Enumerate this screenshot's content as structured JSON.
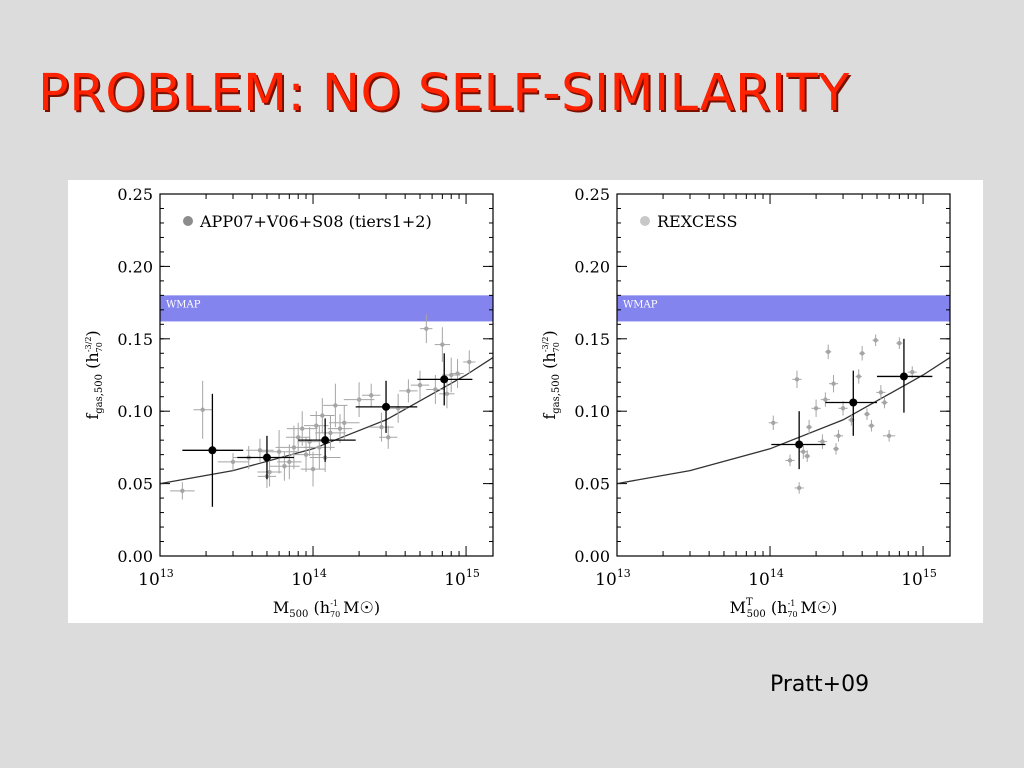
{
  "slide": {
    "title": "PROBLEM: NO SELF-SIMILARITY",
    "credit": "Pratt+09"
  },
  "chart_data": [
    {
      "type": "scatter",
      "title": "",
      "xscale": "log",
      "xlim": [
        10000000000000.0,
        1500000000000000.0
      ],
      "ylim": [
        0.0,
        0.25
      ],
      "x_ticks": [
        {
          "v": 10000000000000.0,
          "base": "10",
          "exp": "13"
        },
        {
          "v": 100000000000000.0,
          "base": "10",
          "exp": "14"
        },
        {
          "v": 1000000000000000.0,
          "base": "10",
          "exp": "15"
        }
      ],
      "y_ticks": [
        "0.00",
        "0.05",
        "0.10",
        "0.15",
        "0.20",
        "0.25"
      ],
      "xlabel": {
        "main": "M",
        "sub": "500",
        "sup": "",
        "unit": "(h",
        "unit_sub": "70",
        "unit_sup": "-1",
        "unit_tail": " M☉)"
      },
      "ylabel": {
        "main": "f",
        "sub": "gas,500",
        "unit": "(h",
        "unit_sub": "70",
        "unit_sup": "-3/2",
        "unit_tail": ")"
      },
      "legend": {
        "label": "APP07+V06+S08 (tiers1+2)",
        "color": "#8c8c8c",
        "position": "top-left"
      },
      "band": {
        "label": "WMAP",
        "y0": 0.162,
        "y1": 0.18,
        "color": "#8484ee"
      },
      "fit_curve": {
        "x": [
          10000000000000.0,
          30000000000000.0,
          100000000000000.0,
          300000000000000.0,
          1000000000000000.0,
          1500000000000000.0
        ],
        "y": [
          0.05,
          0.059,
          0.074,
          0.094,
          0.125,
          0.137
        ]
      },
      "series": [
        {
          "role": "individual",
          "color": "#a5a5a5",
          "points": [
            {
              "x": 14000000000000.0,
              "y": 0.045,
              "xe": 0.08,
              "ye": 0.006
            },
            {
              "x": 19000000000000.0,
              "y": 0.101,
              "xe": 0.06,
              "ye": 0.02
            },
            {
              "x": 30000000000000.0,
              "y": 0.065,
              "xe": 0.1,
              "ye": 0.006
            },
            {
              "x": 38000000000000.0,
              "y": 0.068,
              "xe": 0.1,
              "ye": 0.008
            },
            {
              "x": 45000000000000.0,
              "y": 0.073,
              "xe": 0.09,
              "ye": 0.008
            },
            {
              "x": 52000000000000.0,
              "y": 0.058,
              "xe": 0.08,
              "ye": 0.01
            },
            {
              "x": 50000000000000.0,
              "y": 0.055,
              "xe": 0.06,
              "ye": 0.008
            },
            {
              "x": 60000000000000.0,
              "y": 0.072,
              "xe": 0.12,
              "ye": 0.015
            },
            {
              "x": 65000000000000.0,
              "y": 0.062,
              "xe": 0.1,
              "ye": 0.01
            },
            {
              "x": 70000000000000.0,
              "y": 0.065,
              "xe": 0.08,
              "ye": 0.012
            },
            {
              "x": 75000000000000.0,
              "y": 0.075,
              "xe": 0.12,
              "ye": 0.015
            },
            {
              "x": 80000000000000.0,
              "y": 0.082,
              "xe": 0.08,
              "ye": 0.01
            },
            {
              "x": 85000000000000.0,
              "y": 0.088,
              "xe": 0.1,
              "ye": 0.012
            },
            {
              "x": 90000000000000.0,
              "y": 0.07,
              "xe": 0.1,
              "ye": 0.012
            },
            {
              "x": 95000000000000.0,
              "y": 0.079,
              "xe": 0.08,
              "ye": 0.01
            },
            {
              "x": 100000000000000.0,
              "y": 0.06,
              "xe": 0.08,
              "ye": 0.012
            },
            {
              "x": 105000000000000.0,
              "y": 0.09,
              "xe": 0.08,
              "ye": 0.01
            },
            {
              "x": 110000000000000.0,
              "y": 0.075,
              "xe": 0.1,
              "ye": 0.015
            },
            {
              "x": 115000000000000.0,
              "y": 0.097,
              "xe": 0.08,
              "ye": 0.012
            },
            {
              "x": 120000000000000.0,
              "y": 0.068,
              "xe": 0.1,
              "ye": 0.01
            },
            {
              "x": 130000000000000.0,
              "y": 0.085,
              "xe": 0.1,
              "ye": 0.012
            },
            {
              "x": 140000000000000.0,
              "y": 0.104,
              "xe": 0.08,
              "ye": 0.015
            },
            {
              "x": 150000000000000.0,
              "y": 0.088,
              "xe": 0.08,
              "ye": 0.01
            },
            {
              "x": 160000000000000.0,
              "y": 0.092,
              "xe": 0.1,
              "ye": 0.012
            },
            {
              "x": 200000000000000.0,
              "y": 0.108,
              "xe": 0.1,
              "ye": 0.012
            },
            {
              "x": 240000000000000.0,
              "y": 0.111,
              "xe": 0.06,
              "ye": 0.008
            },
            {
              "x": 280000000000000.0,
              "y": 0.089,
              "xe": 0.08,
              "ye": 0.01
            },
            {
              "x": 310000000000000.0,
              "y": 0.082,
              "xe": 0.06,
              "ye": 0.008
            },
            {
              "x": 360000000000000.0,
              "y": 0.102,
              "xe": 0.06,
              "ye": 0.01
            },
            {
              "x": 420000000000000.0,
              "y": 0.114,
              "xe": 0.06,
              "ye": 0.008
            },
            {
              "x": 500000000000000.0,
              "y": 0.118,
              "xe": 0.06,
              "ye": 0.01
            },
            {
              "x": 550000000000000.0,
              "y": 0.157,
              "xe": 0.04,
              "ye": 0.01
            },
            {
              "x": 630000000000000.0,
              "y": 0.115,
              "xe": 0.06,
              "ye": 0.01
            },
            {
              "x": 700000000000000.0,
              "y": 0.146,
              "xe": 0.05,
              "ye": 0.012
            },
            {
              "x": 750000000000000.0,
              "y": 0.112,
              "xe": 0.05,
              "ye": 0.01
            },
            {
              "x": 800000000000000.0,
              "y": 0.125,
              "xe": 0.06,
              "ye": 0.012
            },
            {
              "x": 880000000000000.0,
              "y": 0.126,
              "xe": 0.04,
              "ye": 0.01
            },
            {
              "x": 1050000000000000.0,
              "y": 0.134,
              "xe": 0.04,
              "ye": 0.008
            }
          ]
        },
        {
          "role": "binned",
          "color": "#000000",
          "points": [
            {
              "x": 22000000000000.0,
              "y": 0.073,
              "xlo": 14000000000000.0,
              "xhi": 35000000000000.0,
              "ylo": 0.034,
              "yhi": 0.112
            },
            {
              "x": 50000000000000.0,
              "y": 0.068,
              "xlo": 32000000000000.0,
              "xhi": 75000000000000.0,
              "ylo": 0.053,
              "yhi": 0.083
            },
            {
              "x": 120000000000000.0,
              "y": 0.08,
              "xlo": 80000000000000.0,
              "xhi": 190000000000000.0,
              "ylo": 0.065,
              "yhi": 0.095
            },
            {
              "x": 300000000000000.0,
              "y": 0.103,
              "xlo": 190000000000000.0,
              "xhi": 480000000000000.0,
              "ylo": 0.085,
              "yhi": 0.121
            },
            {
              "x": 720000000000000.0,
              "y": 0.122,
              "xlo": 480000000000000.0,
              "xhi": 1100000000000000.0,
              "ylo": 0.104,
              "yhi": 0.14
            }
          ]
        }
      ]
    },
    {
      "type": "scatter",
      "title": "",
      "xscale": "log",
      "xlim": [
        10000000000000.0,
        1500000000000000.0
      ],
      "ylim": [
        0.0,
        0.25
      ],
      "x_ticks": [
        {
          "v": 10000000000000.0,
          "base": "10",
          "exp": "13"
        },
        {
          "v": 100000000000000.0,
          "base": "10",
          "exp": "14"
        },
        {
          "v": 1000000000000000.0,
          "base": "10",
          "exp": "15"
        }
      ],
      "y_ticks": [
        "0.00",
        "0.05",
        "0.10",
        "0.15",
        "0.20",
        "0.25"
      ],
      "xlabel": {
        "main": "M",
        "sub": "500",
        "sup": "T",
        "unit": "(h",
        "unit_sub": "70",
        "unit_sup": "-1",
        "unit_tail": " M☉)"
      },
      "ylabel": {
        "main": "f",
        "sub": "gas,500",
        "unit": "(h",
        "unit_sub": "70",
        "unit_sup": "-3/2",
        "unit_tail": ")"
      },
      "legend": {
        "label": "REXCESS",
        "color": "#c8c8c8",
        "position": "top-left"
      },
      "band": {
        "label": "WMAP",
        "y0": 0.162,
        "y1": 0.18,
        "color": "#8484ee"
      },
      "fit_curve": {
        "x": [
          10000000000000.0,
          30000000000000.0,
          100000000000000.0,
          300000000000000.0,
          1000000000000000.0,
          1500000000000000.0
        ],
        "y": [
          0.05,
          0.059,
          0.074,
          0.094,
          0.125,
          0.137
        ]
      },
      "series": [
        {
          "role": "individual",
          "color": "#a5a5a5",
          "points": [
            {
              "x": 105000000000000.0,
              "y": 0.092,
              "xe": 0.03,
              "ye": 0.005
            },
            {
              "x": 135000000000000.0,
              "y": 0.066,
              "xe": 0.03,
              "ye": 0.004
            },
            {
              "x": 150000000000000.0,
              "y": 0.122,
              "xe": 0.03,
              "ye": 0.006
            },
            {
              "x": 155000000000000.0,
              "y": 0.047,
              "xe": 0.03,
              "ye": 0.004
            },
            {
              "x": 165000000000000.0,
              "y": 0.072,
              "xe": 0.03,
              "ye": 0.005
            },
            {
              "x": 175000000000000.0,
              "y": 0.069,
              "xe": 0.02,
              "ye": 0.004
            },
            {
              "x": 180000000000000.0,
              "y": 0.089,
              "xe": 0.02,
              "ye": 0.005
            },
            {
              "x": 200000000000000.0,
              "y": 0.102,
              "xe": 0.03,
              "ye": 0.006
            },
            {
              "x": 220000000000000.0,
              "y": 0.079,
              "xe": 0.03,
              "ye": 0.005
            },
            {
              "x": 230000000000000.0,
              "y": 0.108,
              "xe": 0.03,
              "ye": 0.005
            },
            {
              "x": 240000000000000.0,
              "y": 0.141,
              "xe": 0.02,
              "ye": 0.005
            },
            {
              "x": 260000000000000.0,
              "y": 0.119,
              "xe": 0.03,
              "ye": 0.006
            },
            {
              "x": 270000000000000.0,
              "y": 0.074,
              "xe": 0.02,
              "ye": 0.004
            },
            {
              "x": 280000000000000.0,
              "y": 0.083,
              "xe": 0.03,
              "ye": 0.004
            },
            {
              "x": 300000000000000.0,
              "y": 0.102,
              "xe": 0.03,
              "ye": 0.005
            },
            {
              "x": 340000000000000.0,
              "y": 0.094,
              "xe": 0.02,
              "ye": 0.004
            },
            {
              "x": 380000000000000.0,
              "y": 0.124,
              "xe": 0.02,
              "ye": 0.005
            },
            {
              "x": 400000000000000.0,
              "y": 0.14,
              "xe": 0.02,
              "ye": 0.005
            },
            {
              "x": 430000000000000.0,
              "y": 0.098,
              "xe": 0.02,
              "ye": 0.004
            },
            {
              "x": 460000000000000.0,
              "y": 0.09,
              "xe": 0.02,
              "ye": 0.004
            },
            {
              "x": 490000000000000.0,
              "y": 0.149,
              "xe": 0.02,
              "ye": 0.004
            },
            {
              "x": 530000000000000.0,
              "y": 0.113,
              "xe": 0.03,
              "ye": 0.005
            },
            {
              "x": 560000000000000.0,
              "y": 0.106,
              "xe": 0.02,
              "ye": 0.004
            },
            {
              "x": 600000000000000.0,
              "y": 0.083,
              "xe": 0.04,
              "ye": 0.004
            },
            {
              "x": 700000000000000.0,
              "y": 0.147,
              "xe": 0.02,
              "ye": 0.004
            },
            {
              "x": 850000000000000.0,
              "y": 0.127,
              "xe": 0.03,
              "ye": 0.004
            }
          ]
        },
        {
          "role": "binned",
          "color": "#000000",
          "points": [
            {
              "x": 155000000000000.0,
              "y": 0.077,
              "xlo": 102000000000000.0,
              "xhi": 230000000000000.0,
              "ylo": 0.06,
              "yhi": 0.1
            },
            {
              "x": 350000000000000.0,
              "y": 0.106,
              "xlo": 230000000000000.0,
              "xhi": 500000000000000.0,
              "ylo": 0.083,
              "yhi": 0.128
            },
            {
              "x": 750000000000000.0,
              "y": 0.124,
              "xlo": 500000000000000.0,
              "xhi": 1150000000000000.0,
              "ylo": 0.099,
              "yhi": 0.15
            }
          ]
        }
      ]
    }
  ]
}
